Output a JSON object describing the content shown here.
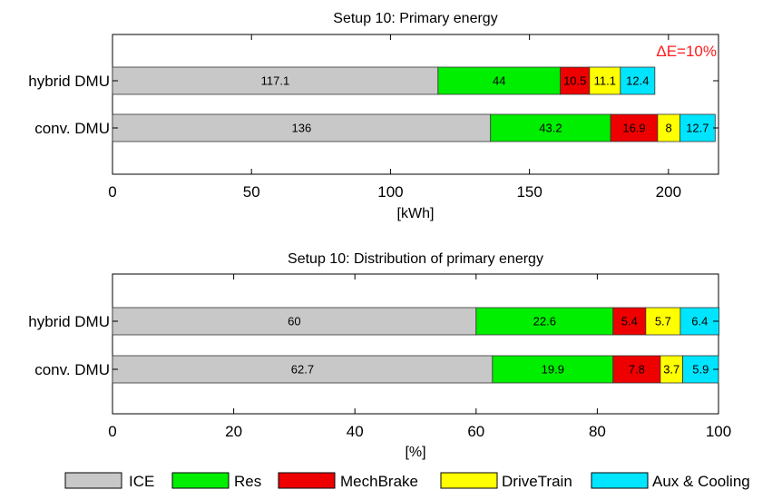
{
  "chart_data": [
    {
      "type": "bar",
      "orientation": "horizontal",
      "stacked": true,
      "title": "Setup 10: Primary energy",
      "xlabel": "[kWh]",
      "ylabel": "",
      "xlim": [
        0,
        218
      ],
      "xticks": [
        0,
        50,
        100,
        150,
        200
      ],
      "grid": false,
      "categories": [
        "hybrid DMU",
        "conv. DMU"
      ],
      "series": [
        {
          "name": "ICE",
          "color": "#c8c8c8",
          "values": [
            117.1,
            136
          ]
        },
        {
          "name": "Res",
          "color": "#00ee00",
          "values": [
            44,
            43.2
          ]
        },
        {
          "name": "MechBrake",
          "color": "#ee0000",
          "values": [
            10.5,
            16.9
          ]
        },
        {
          "name": "DriveTrain",
          "color": "#ffff00",
          "values": [
            11.1,
            8
          ]
        },
        {
          "name": "Aux & Cooling",
          "color": "#00e5ff",
          "values": [
            12.4,
            12.7
          ]
        }
      ],
      "annotations": [
        {
          "text": "ΔE=10%",
          "color": "#ff1a1a",
          "position": "top-right"
        }
      ]
    },
    {
      "type": "bar",
      "orientation": "horizontal",
      "stacked": true,
      "title": "Setup 10: Distribution of primary energy",
      "xlabel": "[%]",
      "ylabel": "",
      "xlim": [
        0,
        100
      ],
      "xticks": [
        0,
        20,
        40,
        60,
        80,
        100
      ],
      "grid": false,
      "categories": [
        "hybrid DMU",
        "conv. DMU"
      ],
      "series": [
        {
          "name": "ICE",
          "color": "#c8c8c8",
          "values": [
            60,
            62.7
          ]
        },
        {
          "name": "Res",
          "color": "#00ee00",
          "values": [
            22.6,
            19.9
          ]
        },
        {
          "name": "MechBrake",
          "color": "#ee0000",
          "values": [
            5.4,
            7.8
          ]
        },
        {
          "name": "DriveTrain",
          "color": "#ffff00",
          "values": [
            5.7,
            3.7
          ]
        },
        {
          "name": "Aux & Cooling",
          "color": "#00e5ff",
          "values": [
            6.4,
            5.9
          ]
        }
      ],
      "annotations": []
    }
  ],
  "legend": {
    "placement": "bottom",
    "items": [
      {
        "label": "ICE",
        "color": "#c8c8c8"
      },
      {
        "label": "Res",
        "color": "#00ee00"
      },
      {
        "label": "MechBrake",
        "color": "#ee0000"
      },
      {
        "label": "DriveTrain",
        "color": "#ffff00"
      },
      {
        "label": "Aux & Cooling",
        "color": "#00e5ff"
      }
    ]
  }
}
